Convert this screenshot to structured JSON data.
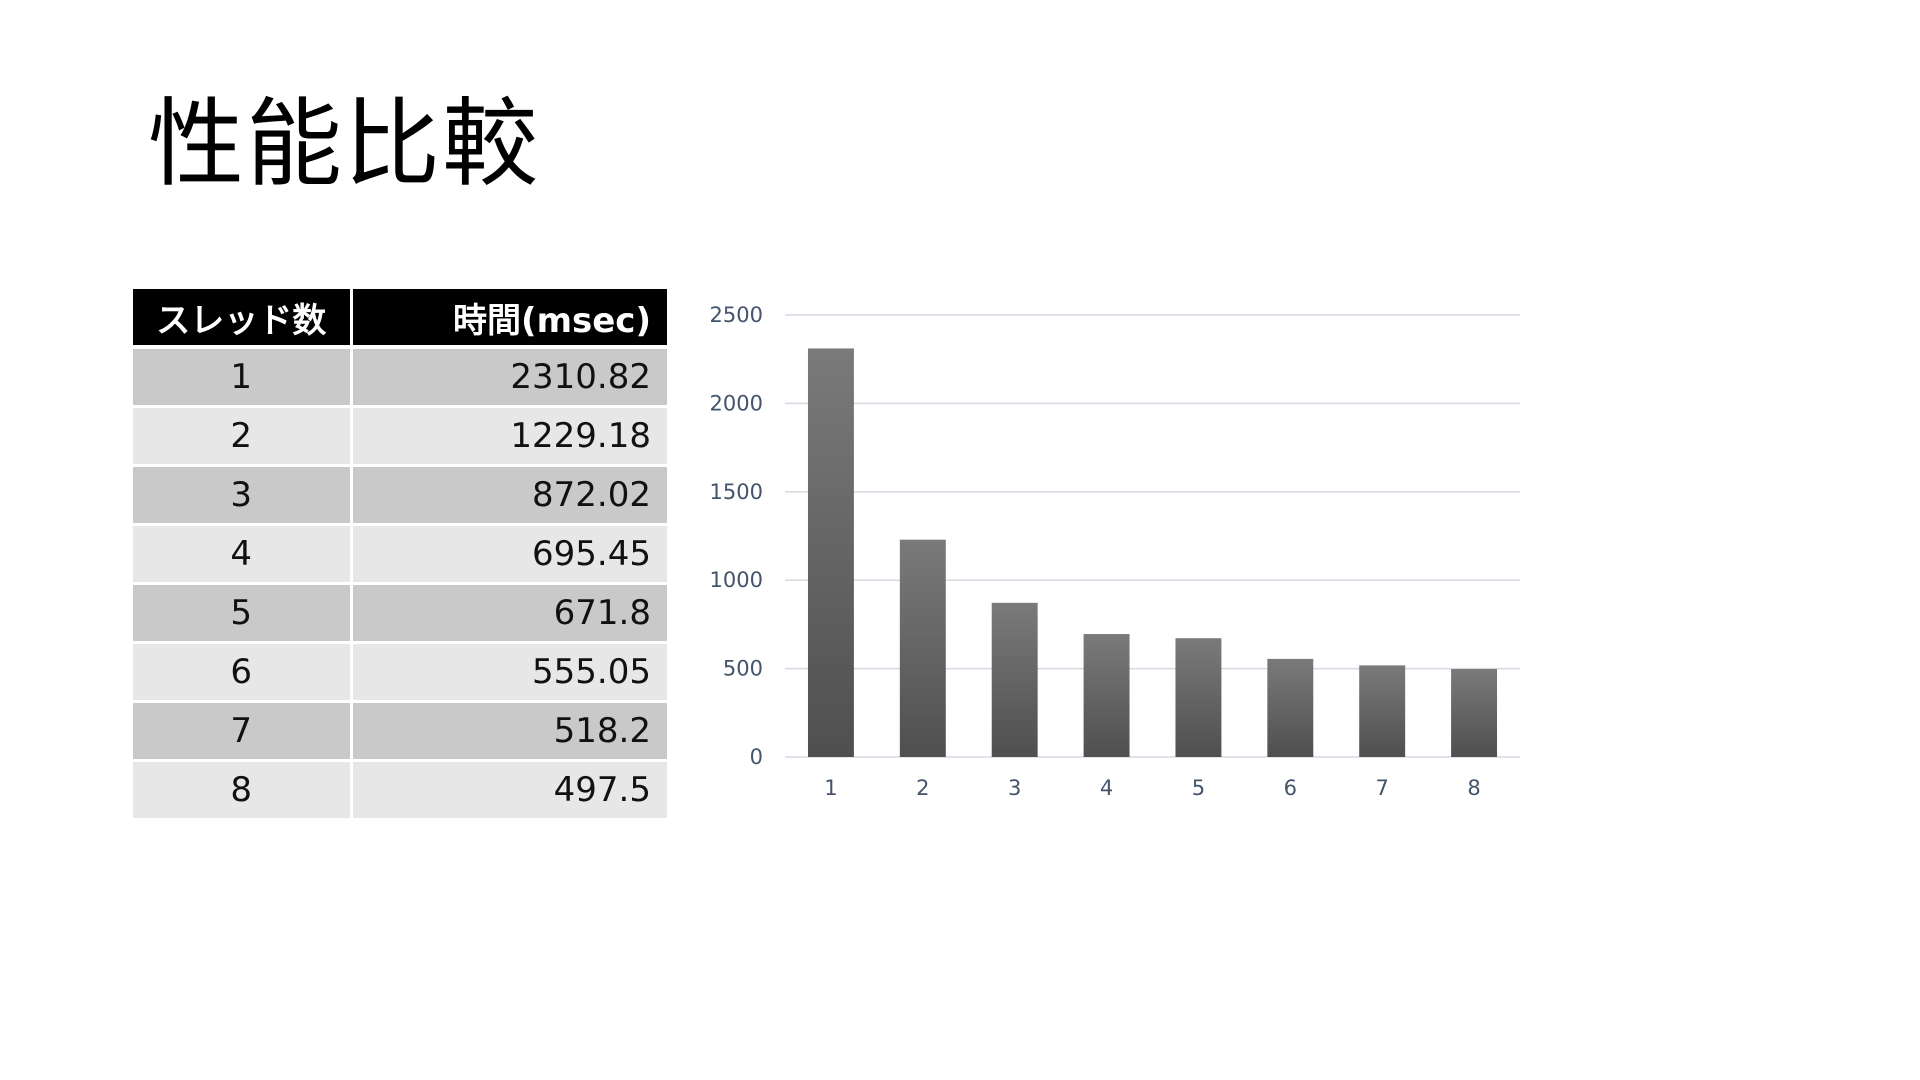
{
  "slide": {
    "title": "性能比較"
  },
  "table": {
    "headers": [
      "スレッド数",
      "時間(msec)"
    ],
    "rows": [
      {
        "threads": "1",
        "time": "2310.82"
      },
      {
        "threads": "2",
        "time": "1229.18"
      },
      {
        "threads": "3",
        "time": "872.02"
      },
      {
        "threads": "4",
        "time": "695.45"
      },
      {
        "threads": "5",
        "time": "671.8"
      },
      {
        "threads": "6",
        "time": "555.05"
      },
      {
        "threads": "7",
        "time": "518.2"
      },
      {
        "threads": "8",
        "time": "497.5"
      }
    ]
  },
  "chart_data": {
    "type": "bar",
    "categories": [
      "1",
      "2",
      "3",
      "4",
      "5",
      "6",
      "7",
      "8"
    ],
    "values": [
      2310.82,
      1229.18,
      872.02,
      695.45,
      671.8,
      555.05,
      518.2,
      497.5
    ],
    "title": "",
    "xlabel": "",
    "ylabel": "",
    "ylim": [
      0,
      2500
    ],
    "yticks": [
      0,
      500,
      1000,
      1500,
      2000,
      2500
    ],
    "grid": true,
    "legend": "none",
    "colors": {
      "bar_top": "#7a7a7a",
      "bar_bottom": "#4f4f4f",
      "gridline": "#d9d9e3",
      "tick_label": "#44546a"
    }
  }
}
